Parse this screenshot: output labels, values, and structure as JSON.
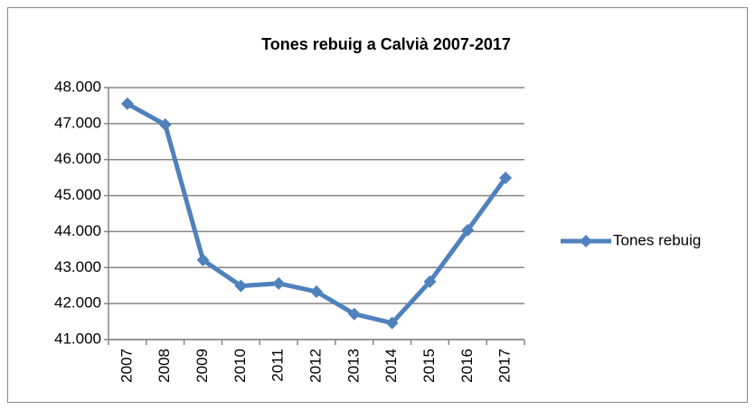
{
  "chart_data": {
    "type": "line",
    "title": "Tones rebuig a Calvià 2007-2017",
    "categories": [
      "2007",
      "2008",
      "2009",
      "2010",
      "2011",
      "2012",
      "2013",
      "2014",
      "2015",
      "2016",
      "2017"
    ],
    "series": [
      {
        "name": "Tones rebuig",
        "color": "#4f81bd",
        "values": [
          47550,
          46970,
          43210,
          42490,
          42560,
          42330,
          41710,
          41460,
          42610,
          44040,
          45490
        ]
      }
    ],
    "ylim": [
      41000,
      48000
    ],
    "yticks": [
      {
        "value": 41000,
        "label": "41.000"
      },
      {
        "value": 42000,
        "label": "42.000"
      },
      {
        "value": 43000,
        "label": "43.000"
      },
      {
        "value": 44000,
        "label": "44.000"
      },
      {
        "value": 45000,
        "label": "45.000"
      },
      {
        "value": 46000,
        "label": "46.000"
      },
      {
        "value": 47000,
        "label": "47.000"
      },
      {
        "value": 48000,
        "label": "48.000"
      }
    ],
    "grid": true,
    "legend": "right"
  }
}
